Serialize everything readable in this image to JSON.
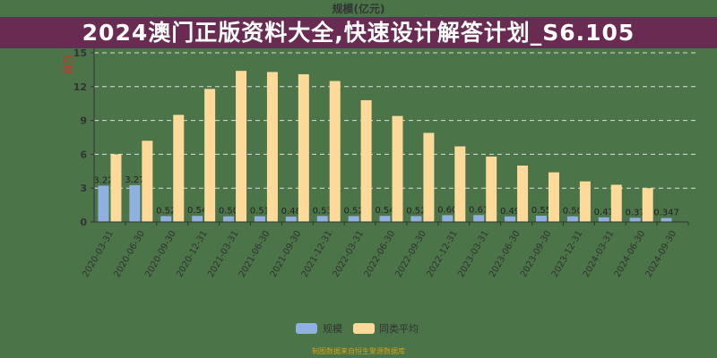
{
  "chart_data": {
    "type": "bar",
    "title": "规模(亿元)",
    "ylabel": "规模",
    "ylim": [
      0,
      15
    ],
    "yticks": [
      0,
      3,
      6,
      9,
      12,
      15
    ],
    "grid": true,
    "legend_placement": "bottom",
    "categories": [
      "2020-03-31",
      "2020-06-30",
      "2020-09-30",
      "2020-12-31",
      "2021-03-31",
      "2021-06-30",
      "2021-09-30",
      "2021-12-31",
      "2022-03-31",
      "2022-06-30",
      "2022-09-30",
      "2022-12-31",
      "2023-03-31",
      "2023-06-30",
      "2023-09-30",
      "2023-12-31",
      "2024-03-31",
      "2024-06-30",
      "2024-09-30"
    ],
    "series": [
      {
        "name": "规模",
        "color": "#8fb0e0",
        "values": [
          3.22,
          3.27,
          0.52,
          0.54,
          0.5,
          0.51,
          0.48,
          0.53,
          0.52,
          0.54,
          0.52,
          0.6,
          0.61,
          0.49,
          0.55,
          0.5,
          0.41,
          0.37,
          0.347
        ],
        "labels": [
          "3.22",
          "3.27",
          "0.52",
          "0.54",
          "0.50",
          "0.51",
          "0.48",
          "0.53",
          "0.52",
          "0.54",
          "0.52",
          "0.60",
          "0.61",
          "0.49",
          "0.55",
          "0.50",
          "0.41",
          "0.37",
          "0.347"
        ]
      },
      {
        "name": "同类平均",
        "color": "#fdd99a",
        "values": [
          6.0,
          7.2,
          9.5,
          11.8,
          13.4,
          13.3,
          13.1,
          12.5,
          10.8,
          9.4,
          7.9,
          6.7,
          5.8,
          5.0,
          4.4,
          3.6,
          3.3,
          3.0,
          null
        ]
      }
    ]
  },
  "footer": "制图数据来自恒生聚源数据库",
  "banner": "2024澳门正版资料大全,快速设计解答计划_S6.105"
}
